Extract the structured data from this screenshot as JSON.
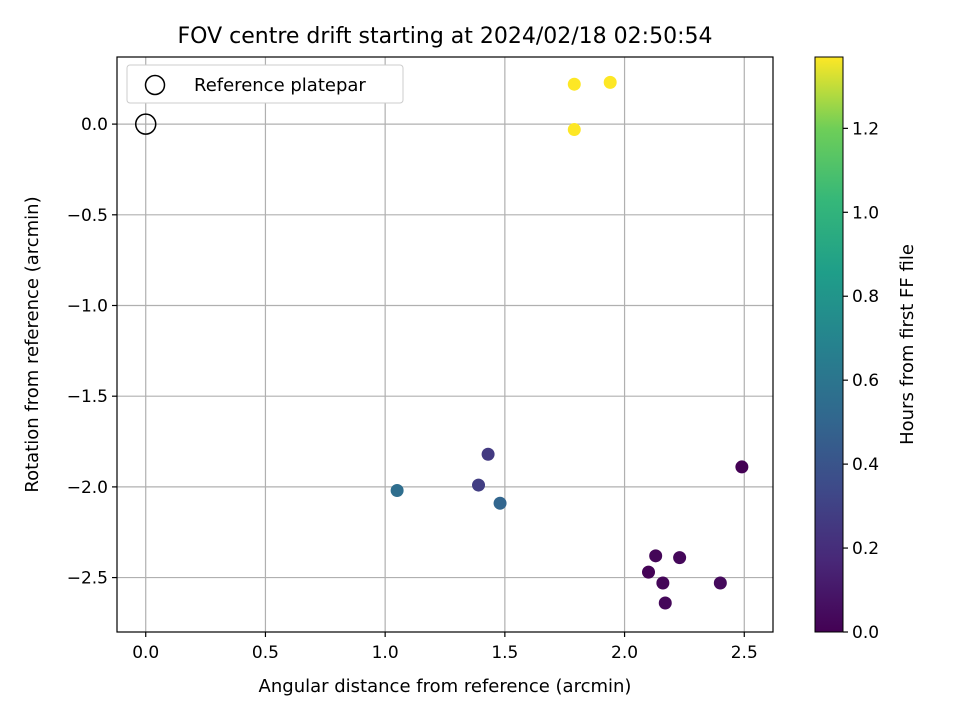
{
  "chart_data": {
    "type": "scatter",
    "title": "FOV centre drift starting at 2024/02/18 02:50:54",
    "xlabel": "Angular distance from reference (arcmin)",
    "ylabel": "Rotation from reference (arcmin)",
    "xlim": [
      -0.12,
      2.62
    ],
    "ylim": [
      -2.8,
      0.37
    ],
    "xticks": [
      0.0,
      0.5,
      1.0,
      1.5,
      2.0,
      2.5
    ],
    "xtick_labels": [
      "0.0",
      "0.5",
      "1.0",
      "1.5",
      "2.0",
      "2.5"
    ],
    "yticks": [
      0.0,
      -0.5,
      -1.0,
      -1.5,
      -2.0,
      -2.5
    ],
    "ytick_labels": [
      "0.0",
      "−0.5",
      "−1.0",
      "−1.5",
      "−2.0",
      "−2.5"
    ],
    "grid": true,
    "legend": {
      "position": "top-left",
      "entries": [
        {
          "label": "Reference platepar",
          "marker": "hollow-circle"
        }
      ]
    },
    "reference_point": {
      "x": 0.0,
      "y": 0.0,
      "label": "Reference platepar"
    },
    "colorbar": {
      "label": "Hours from first FF file",
      "colormap": "viridis",
      "range": [
        0.0,
        1.37
      ],
      "ticks": [
        0.0,
        0.2,
        0.4,
        0.6,
        0.8,
        1.0,
        1.2
      ],
      "tick_labels": [
        "0.0",
        "0.2",
        "0.4",
        "0.6",
        "0.8",
        "1.0",
        "1.2"
      ]
    },
    "points": [
      {
        "x": 2.49,
        "y": -1.89,
        "c": 0.0
      },
      {
        "x": 2.1,
        "y": -2.47,
        "c": 0.01
      },
      {
        "x": 2.13,
        "y": -2.38,
        "c": 0.02
      },
      {
        "x": 2.16,
        "y": -2.53,
        "c": 0.02
      },
      {
        "x": 2.17,
        "y": -2.64,
        "c": 0.03
      },
      {
        "x": 2.23,
        "y": -2.39,
        "c": 0.03
      },
      {
        "x": 2.4,
        "y": -2.53,
        "c": 0.04
      },
      {
        "x": 1.43,
        "y": -1.82,
        "c": 0.26
      },
      {
        "x": 1.39,
        "y": -1.99,
        "c": 0.28
      },
      {
        "x": 1.48,
        "y": -2.09,
        "c": 0.5
      },
      {
        "x": 1.05,
        "y": -2.02,
        "c": 0.55
      },
      {
        "x": 1.79,
        "y": 0.22,
        "c": 1.37
      },
      {
        "x": 1.94,
        "y": 0.23,
        "c": 1.37
      },
      {
        "x": 1.79,
        "y": -0.03,
        "c": 1.37
      }
    ]
  }
}
